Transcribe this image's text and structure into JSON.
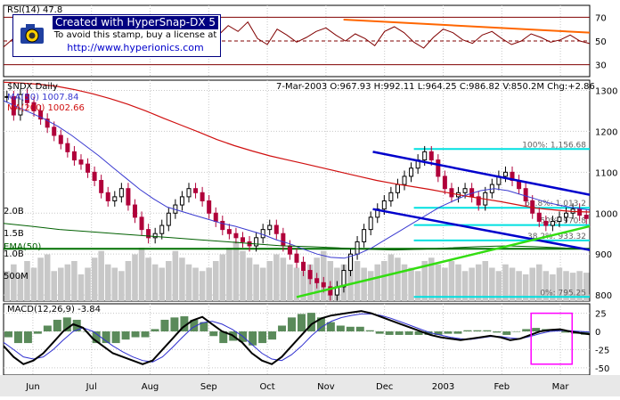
{
  "stamp": {
    "line1": "Created with HyperSnap-DX 5",
    "line2": "To avoid this stamp, buy a license at",
    "line3": "http://www.hyperionics.com"
  },
  "colors": {
    "price_up": "#000000",
    "price_down": "#b0003a",
    "ma50": "#3a3ad0",
    "ma200": "#d01010",
    "ema50": "#006000",
    "volume": "#c8c8c8",
    "fib": "#00e0e0",
    "channel": "#0000cc",
    "trend_green": "#33dd11",
    "rsi_line": "#800000",
    "rsi_trend": "#ff6600",
    "macd_line": "#000000",
    "macd_signal": "#3030d0",
    "macd_hist": "#5a8a5a",
    "highlight_box": "#ff00ff",
    "hline_red": "#b00000",
    "hline_green": "#007000"
  },
  "chart_data": {
    "type": "candlestick",
    "x_labels": [
      "Jun",
      "Jul",
      "Aug",
      "Sep",
      "Oct",
      "Nov",
      "Dec",
      "2003",
      "Feb",
      "Mar"
    ],
    "rsi_panel": {
      "title": "RSI(14) 47.8",
      "yticks": [
        70,
        50,
        30
      ],
      "ylim": [
        20,
        80
      ],
      "trendline": [
        [
          0.58,
          68
        ],
        [
          1.0,
          57
        ]
      ],
      "values": [
        45,
        52,
        40,
        55,
        48,
        60,
        50,
        42,
        58,
        51,
        62,
        55,
        49,
        57,
        44,
        56,
        60,
        48,
        52,
        59,
        45,
        41,
        55,
        63,
        58,
        66,
        52,
        47,
        60,
        55,
        49,
        53,
        58,
        61,
        55,
        50,
        56,
        52,
        46,
        58,
        62,
        57,
        49,
        44,
        53,
        60,
        57,
        51,
        48,
        55,
        58,
        52,
        47,
        50,
        56,
        53,
        49,
        51,
        55,
        50,
        47.8
      ]
    },
    "price_panel": {
      "title": "$NDX Daily",
      "ohlc_header": "7-Mar-2003 O:967.93 H:992.11 L:964.25 C:986.82 V:850.2M Chg:+2.86",
      "legend": [
        "MA(50) 1007.84",
        "MA(200) 1002.66",
        "EMA(50)"
      ],
      "yticks": [
        1300,
        1200,
        1100,
        1000,
        900,
        800
      ],
      "ylim": [
        785,
        1325
      ],
      "volume_labels": [
        "2.0B",
        "1.5B",
        "1.0B",
        "500M"
      ],
      "fib_levels": [
        {
          "label": "100%: 1,156.68",
          "value": 1156.68
        },
        {
          "label": "61.8%: 1,013.2",
          "value": 1013.2
        },
        {
          "label": "50%: 970.8",
          "value": 970.8
        },
        {
          "label": "38.2%: 933.32",
          "value": 933.32
        },
        {
          "label": "0%: 795.25",
          "value": 795.25
        }
      ],
      "close": [
        1285,
        1240,
        1290,
        1270,
        1250,
        1230,
        1210,
        1190,
        1170,
        1150,
        1130,
        1120,
        1100,
        1080,
        1050,
        1030,
        1040,
        1060,
        1020,
        990,
        960,
        940,
        950,
        970,
        1000,
        1020,
        1040,
        1060,
        1050,
        1030,
        1000,
        980,
        960,
        950,
        940,
        930,
        920,
        940,
        960,
        970,
        950,
        920,
        900,
        880,
        860,
        840,
        830,
        820,
        800,
        820,
        860,
        900,
        930,
        960,
        990,
        1010,
        1030,
        1050,
        1070,
        1090,
        1110,
        1130,
        1150,
        1130,
        1090,
        1060,
        1040,
        1050,
        1060,
        1040,
        1020,
        1050,
        1070,
        1090,
        1100,
        1080,
        1060,
        1030,
        1000,
        980,
        970,
        980,
        990,
        1000,
        1010,
        995,
        987
      ],
      "ma50": [
        1275,
        1260,
        1245,
        1230,
        1212,
        1190,
        1165,
        1140,
        1112,
        1085,
        1058,
        1035,
        1015,
        1005,
        995,
        985,
        975,
        968,
        958,
        948,
        935,
        925,
        912,
        900,
        892,
        890,
        900,
        915,
        935,
        955,
        975,
        995,
        1015,
        1030,
        1045,
        1055,
        1060,
        1055,
        1045,
        1035,
        1025,
        1018,
        1012,
        1008
      ],
      "ma200": [
        1320,
        1318,
        1315,
        1310,
        1302,
        1292,
        1280,
        1266,
        1250,
        1232,
        1215,
        1198,
        1180,
        1165,
        1152,
        1140,
        1130,
        1120,
        1110,
        1100,
        1090,
        1080,
        1072,
        1065,
        1058,
        1050,
        1042,
        1035,
        1028,
        1020,
        1012,
        1008,
        1004,
        1002.66
      ],
      "ema50": [
        975,
        968,
        960,
        955,
        950,
        945,
        940,
        935,
        930,
        925,
        920,
        918,
        915,
        912,
        910,
        912,
        915,
        918,
        920,
        918,
        915,
        912
      ],
      "volume": [
        0.9,
        1.1,
        0.8,
        1.2,
        1.0,
        1.3,
        1.4,
        0.9,
        1.0,
        1.1,
        1.2,
        0.8,
        1.0,
        1.3,
        1.5,
        1.1,
        1.0,
        0.9,
        1.2,
        1.4,
        1.6,
        1.3,
        1.1,
        1.0,
        1.2,
        1.5,
        1.3,
        1.1,
        1.0,
        0.9,
        1.0,
        1.2,
        1.4,
        1.6,
        1.8,
        1.5,
        1.3,
        1.1,
        1.0,
        1.2,
        1.4,
        1.3,
        1.1,
        1.0,
        0.9,
        1.1,
        1.3,
        1.5,
        1.2,
        1.0,
        1.1,
        1.3,
        1.2,
        1.0,
        0.9,
        1.1,
        1.2,
        1.4,
        1.3,
        1.1,
        1.0,
        0.9,
        1.2,
        1.3,
        1.1,
        1.0,
        1.2,
        1.1,
        0.9,
        1.0,
        1.1,
        1.2,
        1.0,
        0.9,
        1.1,
        1.0,
        0.9,
        0.8,
        1.0,
        1.1,
        0.9,
        0.8,
        1.0,
        0.9,
        0.85,
        0.9,
        0.85
      ],
      "channel_upper": [
        [
          0.63,
          1150
        ],
        [
          1.0,
          1045
        ]
      ],
      "channel_lower": [
        [
          0.63,
          1010
        ],
        [
          1.0,
          910
        ]
      ],
      "trend_green": [
        [
          0.5,
          795
        ],
        [
          1.0,
          968
        ]
      ]
    },
    "macd_panel": {
      "title": "MACD(12,26,9) -3.84",
      "yticks": [
        25,
        0,
        -25,
        -50
      ],
      "ylim": [
        -60,
        38
      ],
      "macd": [
        -20,
        -35,
        -45,
        -40,
        -30,
        -15,
        0,
        10,
        5,
        -10,
        -20,
        -30,
        -35,
        -40,
        -45,
        -40,
        -25,
        -10,
        5,
        15,
        20,
        10,
        0,
        -5,
        -15,
        -30,
        -40,
        -45,
        -35,
        -20,
        -5,
        10,
        18,
        22,
        24,
        26,
        28,
        25,
        20,
        15,
        10,
        5,
        0,
        -5,
        -8,
        -10,
        -12,
        -10,
        -8,
        -6,
        -8,
        -12,
        -10,
        -5,
        0,
        2,
        3,
        0,
        -2,
        -3.84
      ],
      "signal": [
        -15,
        -25,
        -35,
        -38,
        -35,
        -25,
        -12,
        0,
        5,
        0,
        -10,
        -20,
        -28,
        -35,
        -40,
        -42,
        -35,
        -22,
        -8,
        5,
        12,
        14,
        10,
        3,
        -6,
        -18,
        -30,
        -38,
        -40,
        -32,
        -20,
        -6,
        6,
        14,
        19,
        22,
        24,
        24,
        22,
        18,
        13,
        8,
        3,
        -2,
        -5,
        -8,
        -10,
        -11,
        -9,
        -7,
        -7,
        -9,
        -10,
        -7,
        -3,
        0,
        1,
        1,
        0,
        -1
      ],
      "highlight": {
        "x0": 0.9,
        "x1": 0.97,
        "y0": 25,
        "y1": -45
      }
    }
  }
}
